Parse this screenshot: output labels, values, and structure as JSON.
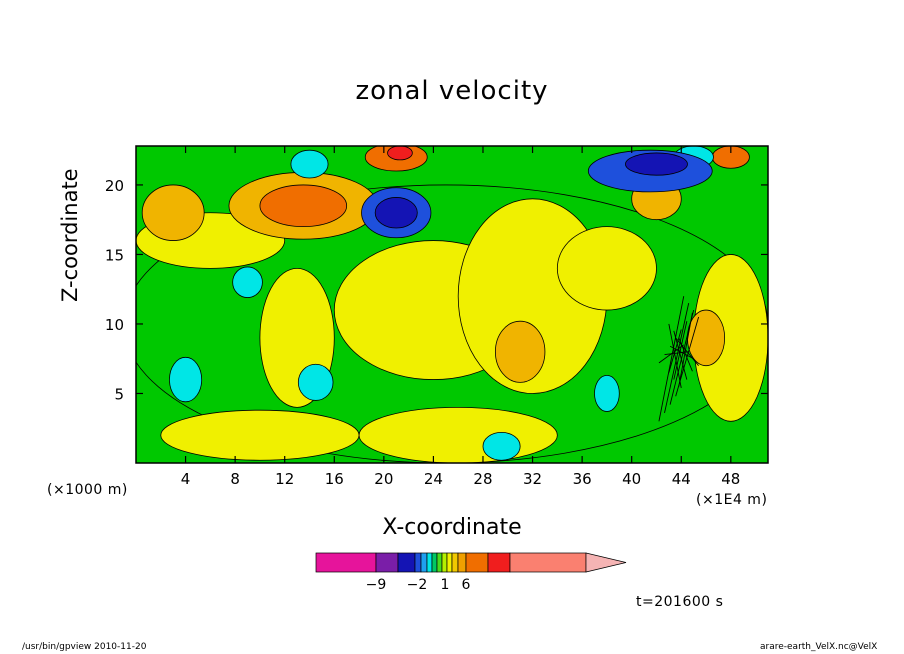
{
  "chart_data": {
    "type": "heatmap",
    "title": "zonal velocity",
    "xlabel": "X-coordinate",
    "ylabel": "Z-coordinate",
    "x_unit_left": "(×1000 m)",
    "x_unit_right": "(×1E4 m)",
    "x_ticks": [
      4,
      8,
      12,
      16,
      20,
      24,
      28,
      32,
      36,
      40,
      44,
      48
    ],
    "y_ticks": [
      5,
      10,
      15,
      20
    ],
    "xlim": [
      0,
      51
    ],
    "ylim": [
      0,
      22.8
    ],
    "colorbar": {
      "tick_labels": [
        {
          "value": -9,
          "label": "−9"
        },
        {
          "value": -2,
          "label": "−2"
        },
        {
          "value": 1,
          "label": "1"
        },
        {
          "value": 6,
          "label": "6"
        }
      ],
      "colors": [
        "#e6149b",
        "#7a1ea8",
        "#1414b4",
        "#1e50dc",
        "#1ea0f0",
        "#00e6e6",
        "#00c864",
        "#46dc1e",
        "#b4f000",
        "#f0f000",
        "#f0c800",
        "#f0a000",
        "#f06e00",
        "#f01e1e",
        "#fa8070",
        "#f5b4b4"
      ]
    },
    "regions": [
      {
        "level": "green",
        "cx": 25,
        "cy": 10,
        "rx": 26,
        "ry": 10
      },
      {
        "level": "yellow",
        "cx": 24,
        "cy": 11,
        "rx": 8,
        "ry": 5
      },
      {
        "level": "yellow",
        "cx": 13,
        "cy": 9,
        "rx": 3,
        "ry": 5
      },
      {
        "level": "yellow",
        "cx": 32,
        "cy": 12,
        "rx": 6,
        "ry": 7
      },
      {
        "level": "yellow",
        "cx": 6,
        "cy": 16,
        "rx": 6,
        "ry": 2
      },
      {
        "level": "yellow",
        "cx": 38,
        "cy": 14,
        "rx": 4,
        "ry": 3
      },
      {
        "level": "yellow",
        "cx": 48,
        "cy": 9,
        "rx": 3,
        "ry": 6
      },
      {
        "level": "yellow",
        "cx": 26,
        "cy": 2,
        "rx": 8,
        "ry": 2
      },
      {
        "level": "yellow",
        "cx": 10,
        "cy": 2,
        "rx": 8,
        "ry": 1.8
      },
      {
        "level": "light-orange",
        "cx": 13.5,
        "cy": 18.5,
        "rx": 6,
        "ry": 2.4
      },
      {
        "level": "light-orange",
        "cx": 3,
        "cy": 18,
        "rx": 2.5,
        "ry": 2
      },
      {
        "level": "light-orange",
        "cx": 31,
        "cy": 8,
        "rx": 2,
        "ry": 2.2
      },
      {
        "level": "light-orange",
        "cx": 46,
        "cy": 9,
        "rx": 1.5,
        "ry": 2
      },
      {
        "level": "light-orange",
        "cx": 42,
        "cy": 19,
        "rx": 2,
        "ry": 1.5
      },
      {
        "level": "orange",
        "cx": 13.5,
        "cy": 18.5,
        "rx": 3.5,
        "ry": 1.5
      },
      {
        "level": "orange",
        "cx": 21,
        "cy": 22,
        "rx": 2.5,
        "ry": 1
      },
      {
        "level": "orange",
        "cx": 48,
        "cy": 22,
        "rx": 1.5,
        "ry": 0.8
      },
      {
        "level": "cyan",
        "cx": 9,
        "cy": 13,
        "rx": 1.2,
        "ry": 1.1
      },
      {
        "level": "cyan",
        "cx": 4,
        "cy": 6,
        "rx": 1.3,
        "ry": 1.6
      },
      {
        "level": "cyan",
        "cx": 14.5,
        "cy": 5.8,
        "rx": 1.4,
        "ry": 1.3
      },
      {
        "level": "cyan",
        "cx": 29.5,
        "cy": 1.2,
        "rx": 1.5,
        "ry": 1
      },
      {
        "level": "cyan",
        "cx": 38,
        "cy": 5,
        "rx": 1,
        "ry": 1.3
      },
      {
        "level": "cyan",
        "cx": 45,
        "cy": 22,
        "rx": 1.6,
        "ry": 0.8
      },
      {
        "level": "cyan",
        "cx": 14,
        "cy": 21.5,
        "rx": 1.5,
        "ry": 1
      },
      {
        "level": "blue",
        "cx": 21,
        "cy": 18,
        "rx": 2.8,
        "ry": 1.8
      },
      {
        "level": "blue",
        "cx": 41.5,
        "cy": 21,
        "rx": 5,
        "ry": 1.5
      },
      {
        "level": "navy",
        "cx": 21,
        "cy": 18,
        "rx": 1.7,
        "ry": 1.1
      },
      {
        "level": "navy",
        "cx": 42,
        "cy": 21.5,
        "rx": 2.5,
        "ry": 0.8
      },
      {
        "level": "red",
        "cx": 21.3,
        "cy": 22.3,
        "rx": 1,
        "ry": 0.5
      }
    ]
  },
  "level_colors": {
    "green": "#00c800",
    "yellow": "#f0f000",
    "light-orange": "#f0b400",
    "orange": "#f06e00",
    "red": "#f01e1e",
    "cyan": "#00e6e6",
    "blue": "#1e50dc",
    "navy": "#1414b4"
  },
  "time_label": "t=201600 s",
  "footer": {
    "left": "/usr/bin/gpview   2010-11-20",
    "right": "arare-earth_VelX.nc@VelX"
  }
}
